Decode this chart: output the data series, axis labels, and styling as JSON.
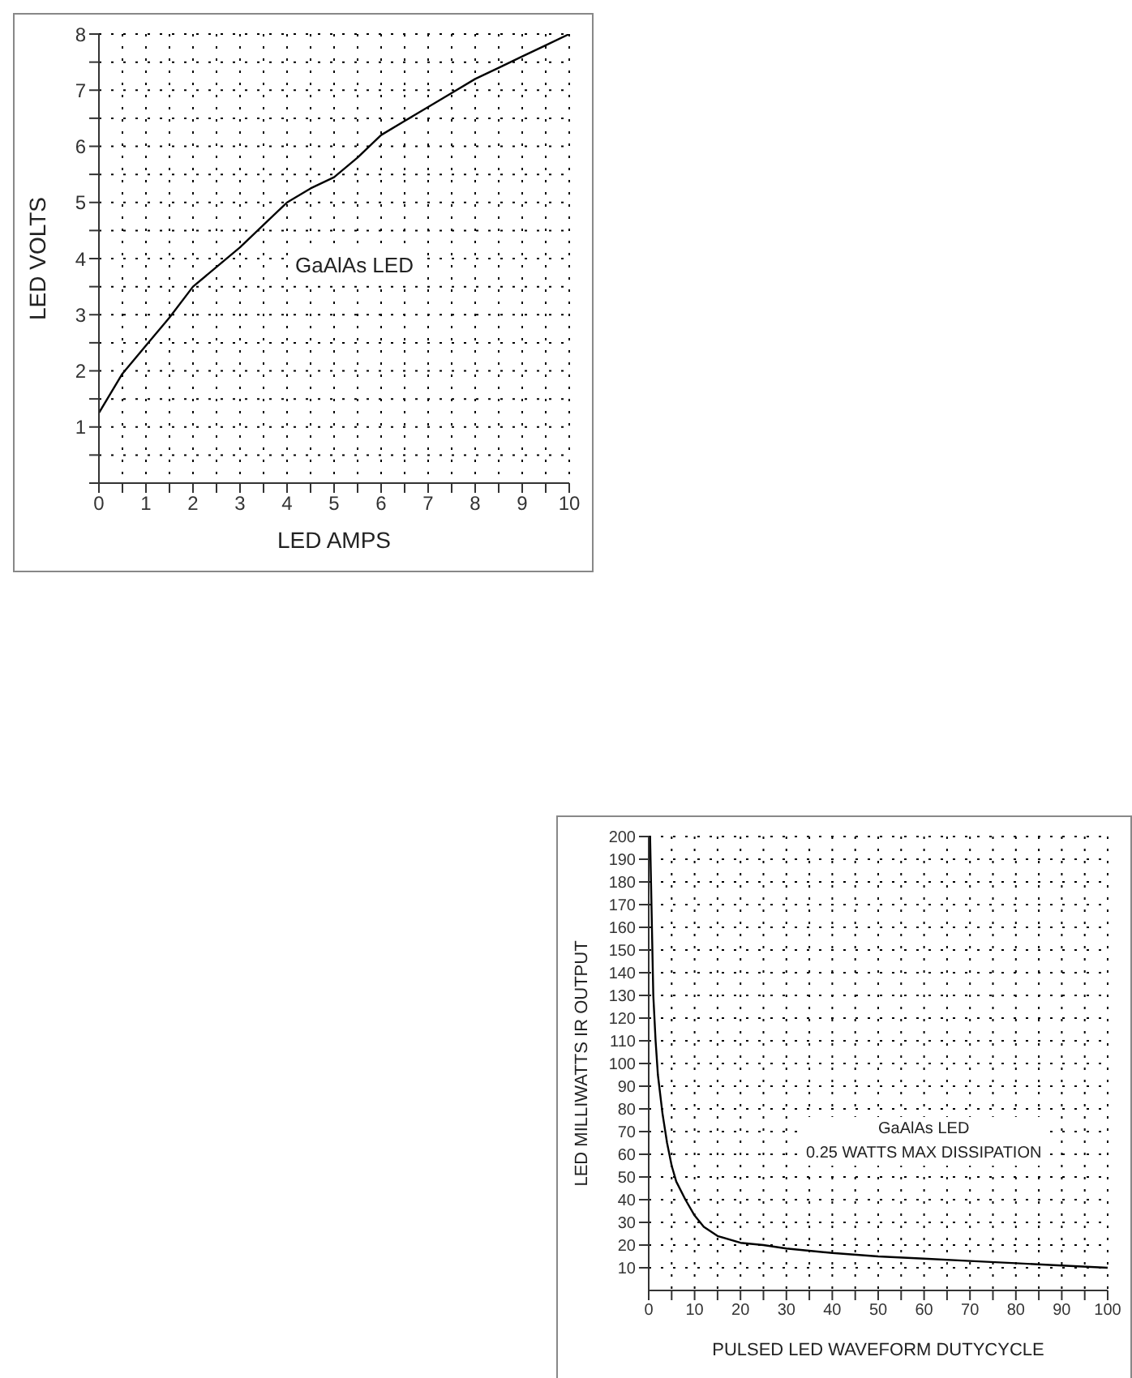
{
  "chart_data": [
    {
      "type": "line",
      "xlabel": "LED AMPS",
      "ylabel": "LED VOLTS",
      "annotations": [
        "GaAlAs LED"
      ],
      "grid": true,
      "marker": "none",
      "line_style": "solid",
      "xlim": [
        0,
        10
      ],
      "ylim": [
        0,
        8
      ],
      "xticks": [
        0,
        {
          "value": 0.5,
          "label": null
        },
        1,
        {
          "value": 1.5,
          "label": null
        },
        2,
        {
          "value": 2.5,
          "label": null
        },
        3,
        {
          "value": 3.5,
          "label": null
        },
        4,
        {
          "value": 4.5,
          "label": null
        },
        5,
        {
          "value": 5.5,
          "label": null
        },
        6,
        {
          "value": 6.5,
          "label": null
        },
        7,
        {
          "value": 7.5,
          "label": null
        },
        8,
        {
          "value": 8.5,
          "label": null
        },
        9,
        {
          "value": 9.5,
          "label": null
        },
        10
      ],
      "yticks": [
        {
          "value": 0,
          "label": null
        },
        {
          "value": 0.5,
          "label": null
        },
        1,
        {
          "value": 1.5,
          "label": null
        },
        2,
        {
          "value": 2.5,
          "label": null
        },
        3,
        {
          "value": 3.5,
          "label": null
        },
        4,
        {
          "value": 4.5,
          "label": null
        },
        5,
        {
          "value": 5.5,
          "label": null
        },
        6,
        {
          "value": 6.5,
          "label": null
        },
        7,
        {
          "value": 7.5,
          "label": null
        },
        8
      ],
      "x": [
        0,
        0.25,
        0.5,
        1,
        1.5,
        2,
        2.5,
        3,
        3.5,
        4,
        4.5,
        5,
        5.5,
        6,
        6.5,
        7,
        7.5,
        8,
        8.5,
        9,
        9.5,
        10
      ],
      "series": [
        {
          "color": "#000000",
          "values": [
            1.25,
            1.6,
            1.95,
            2.45,
            2.95,
            3.5,
            3.85,
            4.2,
            4.6,
            5,
            5.25,
            5.45,
            5.8,
            6.2,
            6.45,
            6.7,
            6.95,
            7.2,
            7.4,
            7.6,
            7.8,
            8
          ]
        }
      ]
    },
    {
      "type": "line",
      "xlabel": "PULSED LED WAVEFORM DUTYCYCLE",
      "ylabel": "LED MILLIWATTS IR OUTPUT",
      "annotations": [
        "GaAlAs LED",
        "0.25 WATTS MAX DISSIPATION"
      ],
      "grid": true,
      "marker": "none",
      "line_style": "solid",
      "xlim": [
        0,
        100
      ],
      "ylim": [
        0,
        200
      ],
      "xticks": [
        0,
        {
          "value": 5,
          "label": null
        },
        10,
        {
          "value": 15,
          "label": null
        },
        20,
        {
          "value": 25,
          "label": null
        },
        30,
        {
          "value": 35,
          "label": null
        },
        40,
        {
          "value": 45,
          "label": null
        },
        50,
        {
          "value": 55,
          "label": null
        },
        60,
        {
          "value": 65,
          "label": null
        },
        70,
        {
          "value": 75,
          "label": null
        },
        80,
        {
          "value": 85,
          "label": null
        },
        90,
        {
          "value": 95,
          "label": null
        },
        100
      ],
      "yticks": [
        10,
        20,
        30,
        40,
        50,
        60,
        70,
        80,
        90,
        100,
        110,
        120,
        130,
        140,
        150,
        160,
        170,
        180,
        190,
        200
      ],
      "x": [
        0.3,
        0.7,
        1,
        1.5,
        2,
        3,
        4,
        5,
        6,
        8,
        10,
        12,
        15,
        20,
        25,
        30,
        40,
        50,
        60,
        70,
        80,
        90,
        100
      ],
      "series": [
        {
          "color": "#000000",
          "values": [
            200,
            160,
            130,
            110,
            95,
            78,
            65,
            55,
            48,
            40,
            33,
            28,
            24,
            21,
            20,
            18.5,
            16.5,
            15,
            14,
            13,
            12,
            11,
            10
          ]
        }
      ]
    }
  ]
}
